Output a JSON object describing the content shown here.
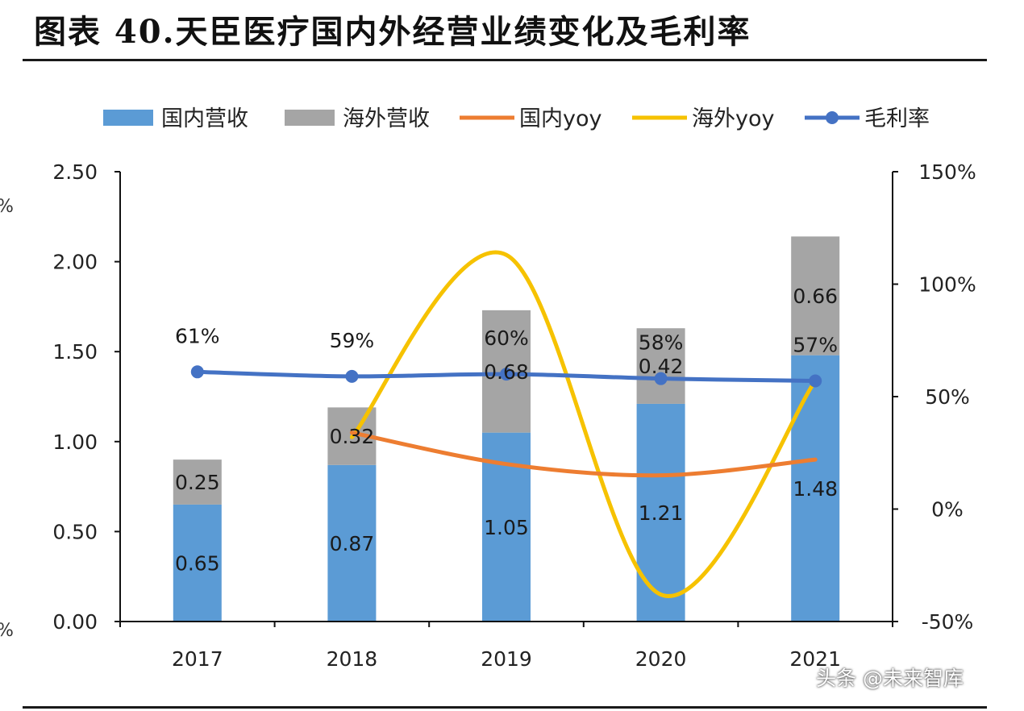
{
  "title": "图表 40.天臣医疗国内外经营业绩变化及毛利率",
  "edge_marks": [
    "%",
    "%"
  ],
  "watermark": "头条 @未来智库",
  "colors": {
    "domestic_revenue": "#5b9bd5",
    "overseas_revenue": "#a5a5a5",
    "domestic_yoy": "#ed7d31",
    "overseas_yoy": "#f6c200",
    "gross_margin": "#4472c4",
    "axis": "#111111"
  },
  "chart_data": {
    "type": "bar",
    "stacked": true,
    "categories": [
      "2017",
      "2018",
      "2019",
      "2020",
      "2021"
    ],
    "legend_position": "top",
    "grid": false,
    "y_left": {
      "ylim": [
        0,
        2.5
      ],
      "ticks": [
        0,
        0.5,
        1.0,
        1.5,
        2.0,
        2.5
      ],
      "tick_labels": [
        "0.00",
        "0.50",
        "1.00",
        "1.50",
        "2.00",
        "2.50"
      ]
    },
    "y_right": {
      "ylim": [
        -50,
        150
      ],
      "ticks": [
        -50,
        0,
        50,
        100,
        150
      ],
      "tick_labels": [
        "-50%",
        "0%",
        "50%",
        "100%",
        "150%"
      ]
    },
    "series": [
      {
        "name": "国内营收",
        "type": "bar",
        "axis": "left",
        "values": [
          0.65,
          0.87,
          1.05,
          1.21,
          1.48
        ],
        "labels": [
          "0.65",
          "0.87",
          "1.05",
          "1.21",
          "1.48"
        ]
      },
      {
        "name": "海外营收",
        "type": "bar",
        "axis": "left",
        "values": [
          0.25,
          0.32,
          0.68,
          0.42,
          0.66
        ],
        "labels": [
          "0.25",
          "0.32",
          "0.68",
          "0.42",
          "0.66"
        ]
      },
      {
        "name": "国内yoy",
        "type": "line",
        "axis": "right",
        "smooth": true,
        "values": [
          null,
          34,
          20,
          15,
          22
        ]
      },
      {
        "name": "海外yoy",
        "type": "line",
        "axis": "right",
        "smooth": true,
        "values": [
          null,
          32,
          113,
          -38,
          57
        ]
      },
      {
        "name": "毛利率",
        "type": "line",
        "axis": "right",
        "markers": true,
        "values": [
          61,
          59,
          60,
          58,
          57
        ],
        "labels": [
          "61%",
          "59%",
          "60%",
          "58%",
          "57%"
        ]
      }
    ]
  }
}
